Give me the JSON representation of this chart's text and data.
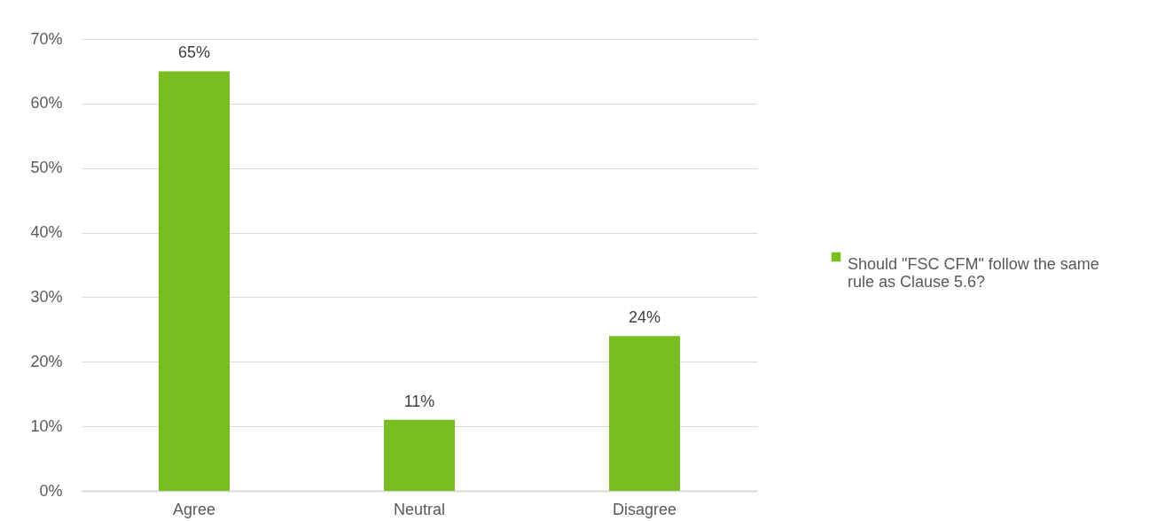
{
  "chart_data": {
    "type": "bar",
    "categories": [
      "Agree",
      "Neutral",
      "Disagree"
    ],
    "series": [
      {
        "name": "Should \"FSC CFM\" follow the same rule as Clause 5.6?",
        "color": "#78be20",
        "values": [
          65,
          11,
          24
        ],
        "value_labels": [
          "65%",
          "11%",
          "24%"
        ]
      }
    ],
    "ylim": [
      0,
      70
    ],
    "yticks": [
      {
        "value": 0,
        "label": "0%"
      },
      {
        "value": 10,
        "label": "10%"
      },
      {
        "value": 20,
        "label": "20%"
      },
      {
        "value": 30,
        "label": "30%"
      },
      {
        "value": 40,
        "label": "40%"
      },
      {
        "value": 50,
        "label": "50%"
      },
      {
        "value": 60,
        "label": "60%"
      },
      {
        "value": 70,
        "label": "70%"
      }
    ],
    "grid": "y",
    "legend": "right"
  }
}
